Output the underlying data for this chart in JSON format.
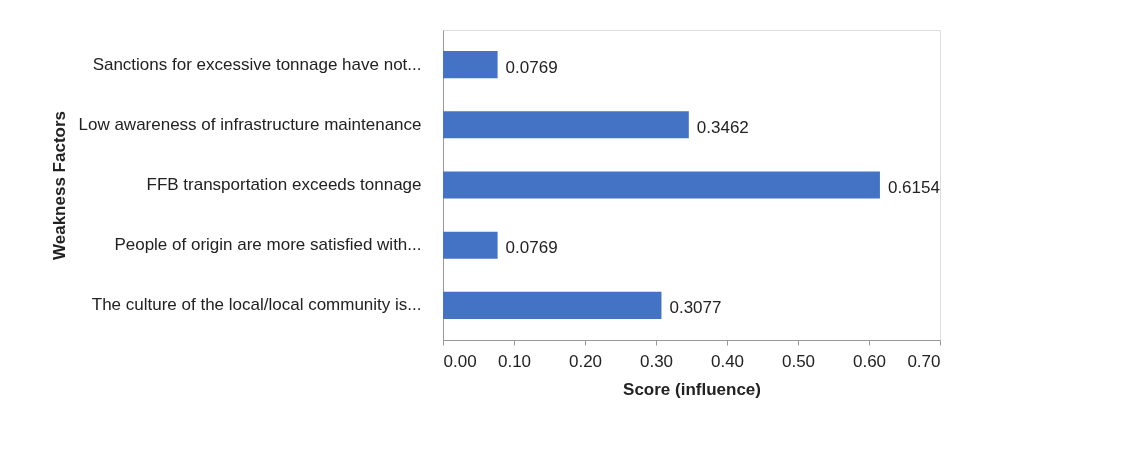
{
  "chart_data": {
    "type": "bar",
    "orientation": "horizontal",
    "xlabel": "Score (influence)",
    "ylabel": "Weakness Factors",
    "categories": [
      "Sanctions for excessive tonnage have not...",
      "Low awareness of infrastructure maintenance",
      "FFB transportation exceeds tonnage",
      "People of origin are more satisfied with...",
      "The culture of the local/local community is..."
    ],
    "values": [
      0.0769,
      0.3462,
      0.6154,
      0.0769,
      0.3077
    ],
    "color": "#4472c4",
    "data_labels": true,
    "xlim": [
      0,
      0.7
    ],
    "xticks": [
      {
        "value": 0,
        "label": "0.00"
      },
      {
        "value": 0.1,
        "label": "0.10"
      },
      {
        "value": 0.2,
        "label": "0.20"
      },
      {
        "value": 0.3,
        "label": "0.30"
      },
      {
        "value": 0.4,
        "label": "0.40"
      },
      {
        "value": 0.5,
        "label": "0.50"
      },
      {
        "value": 0.6,
        "label": "0.60"
      },
      {
        "value": 0.7,
        "label": "0.70"
      }
    ],
    "grid": false
  }
}
